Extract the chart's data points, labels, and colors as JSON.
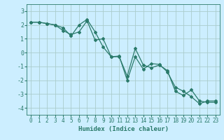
{
  "title": "",
  "xlabel": "Humidex (Indice chaleur)",
  "ylabel": "",
  "bg_color": "#cceeff",
  "grid_color": "#aacccc",
  "line_color": "#2a7a6a",
  "xlim": [
    -0.5,
    23.5
  ],
  "ylim": [
    -4.5,
    3.5
  ],
  "xticks": [
    0,
    1,
    2,
    3,
    4,
    5,
    6,
    7,
    8,
    9,
    10,
    11,
    12,
    13,
    14,
    15,
    16,
    17,
    18,
    19,
    20,
    21,
    22,
    23
  ],
  "yticks": [
    -4,
    -3,
    -2,
    -1,
    0,
    1,
    2,
    3
  ],
  "series1_x": [
    0,
    1,
    2,
    3,
    4,
    5,
    6,
    7,
    8,
    9,
    10,
    11,
    12,
    13,
    14,
    15,
    16,
    17,
    18,
    19,
    20,
    21,
    22,
    23
  ],
  "series1_y": [
    2.2,
    2.2,
    2.1,
    2.0,
    1.6,
    1.3,
    1.5,
    2.3,
    0.9,
    1.0,
    -0.3,
    -0.3,
    -1.7,
    0.3,
    -0.9,
    -1.1,
    -0.9,
    -1.3,
    -2.8,
    -3.1,
    -2.7,
    -3.5,
    -3.6,
    -3.6
  ],
  "series2_x": [
    0,
    1,
    2,
    3,
    4,
    5,
    6,
    7,
    8,
    9,
    10,
    11,
    12,
    13,
    14,
    15,
    16,
    17,
    18,
    19,
    20,
    21,
    22,
    23
  ],
  "series2_y": [
    2.2,
    2.2,
    2.1,
    2.0,
    1.8,
    1.2,
    2.0,
    2.4,
    1.5,
    0.4,
    -0.3,
    -0.25,
    -2.0,
    -0.3,
    -1.2,
    -0.8,
    -0.85,
    -1.4,
    -2.5,
    -2.8,
    -3.2,
    -3.7,
    -3.5,
    -3.5
  ],
  "marker": "D",
  "markersize": 2.0,
  "linewidth": 0.9,
  "tick_fontsize": 5.5,
  "xlabel_fontsize": 6.5
}
